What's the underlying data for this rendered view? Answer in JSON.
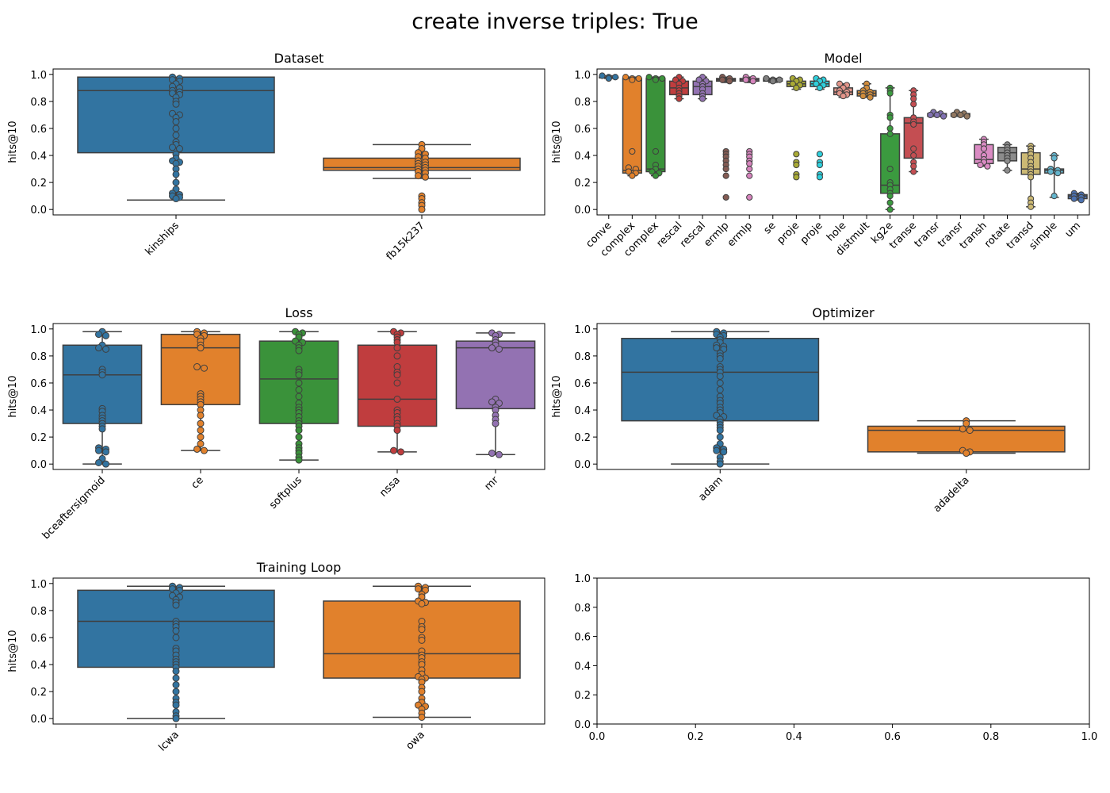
{
  "figure": {
    "title": "create inverse triples: True"
  },
  "chart_data": [
    {
      "type": "box",
      "title": "Dataset",
      "xlabel": "",
      "ylabel": "hits@10",
      "ylim": [
        -0.04,
        1.04
      ],
      "yticks": [
        "0.0",
        "0.2",
        "0.4",
        "0.6",
        "0.8",
        "1.0"
      ],
      "categories": [
        "kinships",
        "fb15k237"
      ],
      "colors": [
        "#3274a1",
        "#e1812c"
      ],
      "boxes": [
        {
          "q1": 0.42,
          "median": 0.88,
          "q3": 0.98,
          "whisker_low": 0.07,
          "whisker_high": 0.98
        },
        {
          "q1": 0.29,
          "median": 0.31,
          "q3": 0.38,
          "whisker_low": 0.23,
          "whisker_high": 0.48
        }
      ],
      "points": [
        [
          0.98,
          0.97,
          0.96,
          0.95,
          0.93,
          0.91,
          0.9,
          0.88,
          0.87,
          0.86,
          0.85,
          0.83,
          0.8,
          0.78,
          0.71,
          0.7,
          0.68,
          0.65,
          0.6,
          0.55,
          0.5,
          0.48,
          0.46,
          0.45,
          0.41,
          0.38,
          0.36,
          0.35,
          0.34,
          0.3,
          0.26,
          0.2,
          0.15,
          0.12,
          0.11,
          0.1,
          0.09,
          0.08
        ],
        [
          0.48,
          0.45,
          0.42,
          0.41,
          0.39,
          0.38,
          0.36,
          0.35,
          0.34,
          0.33,
          0.32,
          0.31,
          0.3,
          0.29,
          0.28,
          0.27,
          0.25,
          0.24,
          0.1,
          0.08,
          0.05,
          0.03,
          0.0
        ]
      ]
    },
    {
      "type": "box",
      "title": "Model",
      "xlabel": "",
      "ylabel": "hits@10",
      "ylim": [
        -0.04,
        1.04
      ],
      "yticks": [
        "0.0",
        "0.2",
        "0.4",
        "0.6",
        "0.8",
        "1.0"
      ],
      "categories": [
        "conve",
        "complex",
        "complex",
        "rescal",
        "rescal",
        "ermlp",
        "ermlp",
        "se",
        "proje",
        "proje",
        "hole",
        "distmult",
        "kg2e",
        "transe",
        "transr",
        "transr",
        "transh",
        "rotate",
        "transd",
        "simple",
        "um"
      ],
      "colors": [
        "#3274a1",
        "#e1812c",
        "#3a923a",
        "#c03d3e",
        "#9372b2",
        "#845b53",
        "#d684bd",
        "#7f7f7f",
        "#a9aa35",
        "#2ed0dd",
        "#e3958a",
        "#d08c3b",
        "#3b9a3f",
        "#c44e52",
        "#8172b2",
        "#937860",
        "#da8bc3",
        "#8c8c8c",
        "#ccb974",
        "#64b5cd",
        "#4c72b0"
      ],
      "boxes": [
        {
          "q1": 0.98,
          "median": 0.98,
          "q3": 0.98,
          "whisker_low": 0.97,
          "whisker_high": 0.99
        },
        {
          "q1": 0.27,
          "median": 0.29,
          "q3": 0.97,
          "whisker_low": 0.25,
          "whisker_high": 0.98
        },
        {
          "q1": 0.28,
          "median": 0.3,
          "q3": 0.97,
          "whisker_low": 0.25,
          "whisker_high": 0.98
        },
        {
          "q1": 0.85,
          "median": 0.9,
          "q3": 0.95,
          "whisker_low": 0.82,
          "whisker_high": 0.98
        },
        {
          "q1": 0.85,
          "median": 0.91,
          "q3": 0.95,
          "whisker_low": 0.82,
          "whisker_high": 0.98
        },
        {
          "q1": 0.95,
          "median": 0.96,
          "q3": 0.97,
          "whisker_low": 0.94,
          "whisker_high": 0.98
        },
        {
          "q1": 0.95,
          "median": 0.96,
          "q3": 0.97,
          "whisker_low": 0.94,
          "whisker_high": 0.98
        },
        {
          "q1": 0.95,
          "median": 0.96,
          "q3": 0.97,
          "whisker_low": 0.94,
          "whisker_high": 0.97
        },
        {
          "q1": 0.91,
          "median": 0.93,
          "q3": 0.95,
          "whisker_low": 0.89,
          "whisker_high": 0.97
        },
        {
          "q1": 0.91,
          "median": 0.93,
          "q3": 0.95,
          "whisker_low": 0.89,
          "whisker_high": 0.97
        },
        {
          "q1": 0.85,
          "median": 0.87,
          "q3": 0.9,
          "whisker_low": 0.83,
          "whisker_high": 0.93
        },
        {
          "q1": 0.84,
          "median": 0.86,
          "q3": 0.88,
          "whisker_low": 0.83,
          "whisker_high": 0.93
        },
        {
          "q1": 0.12,
          "median": 0.18,
          "q3": 0.56,
          "whisker_low": 0.0,
          "whisker_high": 0.9
        },
        {
          "q1": 0.38,
          "median": 0.64,
          "q3": 0.68,
          "whisker_low": 0.28,
          "whisker_high": 0.88
        },
        {
          "q1": 0.69,
          "median": 0.7,
          "q3": 0.71,
          "whisker_low": 0.69,
          "whisker_high": 0.72
        },
        {
          "q1": 0.69,
          "median": 0.7,
          "q3": 0.71,
          "whisker_low": 0.69,
          "whisker_high": 0.72
        },
        {
          "q1": 0.34,
          "median": 0.37,
          "q3": 0.48,
          "whisker_low": 0.32,
          "whisker_high": 0.52
        },
        {
          "q1": 0.36,
          "median": 0.42,
          "q3": 0.46,
          "whisker_low": 0.29,
          "whisker_high": 0.48
        },
        {
          "q1": 0.26,
          "median": 0.3,
          "q3": 0.42,
          "whisker_low": 0.02,
          "whisker_high": 0.47
        },
        {
          "q1": 0.27,
          "median": 0.29,
          "q3": 0.3,
          "whisker_low": 0.09,
          "whisker_high": 0.4
        },
        {
          "q1": 0.08,
          "median": 0.1,
          "q3": 0.11,
          "whisker_low": 0.07,
          "whisker_high": 0.12
        }
      ],
      "points": [
        [
          0.99,
          0.98,
          0.98,
          0.97
        ],
        [
          0.98,
          0.97,
          0.97,
          0.96,
          0.43,
          0.31,
          0.3,
          0.28,
          0.27,
          0.25
        ],
        [
          0.98,
          0.97,
          0.97,
          0.96,
          0.43,
          0.33,
          0.3,
          0.28,
          0.27,
          0.25
        ],
        [
          0.98,
          0.96,
          0.95,
          0.93,
          0.9,
          0.88,
          0.86,
          0.84,
          0.82
        ],
        [
          0.98,
          0.96,
          0.95,
          0.93,
          0.91,
          0.89,
          0.86,
          0.84,
          0.82
        ],
        [
          0.98,
          0.97,
          0.96,
          0.95,
          0.43,
          0.41,
          0.39,
          0.36,
          0.33,
          0.3,
          0.25,
          0.09
        ],
        [
          0.98,
          0.97,
          0.96,
          0.95,
          0.43,
          0.41,
          0.39,
          0.36,
          0.34,
          0.3,
          0.25,
          0.09
        ],
        [
          0.97,
          0.96,
          0.96,
          0.95
        ],
        [
          0.97,
          0.96,
          0.95,
          0.93,
          0.92,
          0.9,
          0.41,
          0.35,
          0.33,
          0.26,
          0.24
        ],
        [
          0.97,
          0.96,
          0.95,
          0.93,
          0.92,
          0.9,
          0.41,
          0.35,
          0.33,
          0.26,
          0.24
        ],
        [
          0.93,
          0.92,
          0.9,
          0.88,
          0.87,
          0.86,
          0.85,
          0.84
        ],
        [
          0.93,
          0.9,
          0.88,
          0.87,
          0.86,
          0.85,
          0.84,
          0.83
        ],
        [
          0.9,
          0.88,
          0.86,
          0.7,
          0.68,
          0.6,
          0.56,
          0.3,
          0.2,
          0.18,
          0.15,
          0.12,
          0.1,
          0.05,
          0.0
        ],
        [
          0.88,
          0.85,
          0.82,
          0.78,
          0.68,
          0.65,
          0.63,
          0.45,
          0.4,
          0.35,
          0.32,
          0.28
        ],
        [
          0.72,
          0.71,
          0.7,
          0.7,
          0.69
        ],
        [
          0.72,
          0.71,
          0.7,
          0.7,
          0.69
        ],
        [
          0.52,
          0.5,
          0.48,
          0.45,
          0.4,
          0.37,
          0.35,
          0.33,
          0.32
        ],
        [
          0.48,
          0.46,
          0.44,
          0.42,
          0.4,
          0.38,
          0.36,
          0.29
        ],
        [
          0.47,
          0.45,
          0.43,
          0.41,
          0.38,
          0.35,
          0.32,
          0.3,
          0.28,
          0.26,
          0.24,
          0.08,
          0.05,
          0.02
        ],
        [
          0.4,
          0.38,
          0.3,
          0.29,
          0.28,
          0.27,
          0.1
        ],
        [
          0.12,
          0.11,
          0.1,
          0.09,
          0.08,
          0.07
        ]
      ]
    },
    {
      "type": "box",
      "title": "Loss",
      "xlabel": "",
      "ylabel": "hits@10",
      "ylim": [
        -0.04,
        1.04
      ],
      "yticks": [
        "0.0",
        "0.2",
        "0.4",
        "0.6",
        "0.8",
        "1.0"
      ],
      "categories": [
        "bceaftersigmoid",
        "ce",
        "softplus",
        "nssa",
        "mr"
      ],
      "colors": [
        "#3274a1",
        "#e1812c",
        "#3a923a",
        "#c03d3e",
        "#9372b2"
      ],
      "boxes": [
        {
          "q1": 0.3,
          "median": 0.66,
          "q3": 0.88,
          "whisker_low": 0.0,
          "whisker_high": 0.98
        },
        {
          "q1": 0.44,
          "median": 0.86,
          "q3": 0.96,
          "whisker_low": 0.1,
          "whisker_high": 0.98
        },
        {
          "q1": 0.3,
          "median": 0.63,
          "q3": 0.91,
          "whisker_low": 0.03,
          "whisker_high": 0.98
        },
        {
          "q1": 0.28,
          "median": 0.48,
          "q3": 0.88,
          "whisker_low": 0.09,
          "whisker_high": 0.98
        },
        {
          "q1": 0.41,
          "median": 0.86,
          "q3": 0.91,
          "whisker_low": 0.07,
          "whisker_high": 0.97
        }
      ],
      "points": [
        [
          0.98,
          0.96,
          0.95,
          0.88,
          0.86,
          0.85,
          0.7,
          0.68,
          0.66,
          0.41,
          0.39,
          0.36,
          0.34,
          0.32,
          0.3,
          0.28,
          0.26,
          0.12,
          0.11,
          0.1,
          0.09,
          0.04,
          0.01,
          0.0
        ],
        [
          0.98,
          0.97,
          0.96,
          0.95,
          0.93,
          0.91,
          0.88,
          0.86,
          0.72,
          0.71,
          0.52,
          0.5,
          0.48,
          0.46,
          0.44,
          0.4,
          0.36,
          0.3,
          0.25,
          0.2,
          0.15,
          0.11,
          0.1
        ],
        [
          0.98,
          0.97,
          0.96,
          0.94,
          0.91,
          0.9,
          0.88,
          0.86,
          0.84,
          0.7,
          0.68,
          0.66,
          0.6,
          0.55,
          0.5,
          0.45,
          0.42,
          0.4,
          0.38,
          0.35,
          0.32,
          0.3,
          0.28,
          0.25,
          0.2,
          0.15,
          0.12,
          0.1,
          0.08,
          0.05,
          0.03
        ],
        [
          0.98,
          0.97,
          0.96,
          0.94,
          0.92,
          0.9,
          0.86,
          0.8,
          0.72,
          0.68,
          0.66,
          0.6,
          0.48,
          0.4,
          0.38,
          0.35,
          0.33,
          0.3,
          0.28,
          0.25,
          0.1,
          0.09
        ],
        [
          0.97,
          0.96,
          0.95,
          0.92,
          0.9,
          0.88,
          0.86,
          0.85,
          0.48,
          0.46,
          0.45,
          0.42,
          0.4,
          0.36,
          0.33,
          0.3,
          0.08,
          0.07
        ]
      ]
    },
    {
      "type": "box",
      "title": "Optimizer",
      "xlabel": "",
      "ylabel": "hits@10",
      "ylim": [
        -0.04,
        1.04
      ],
      "yticks": [
        "0.0",
        "0.2",
        "0.4",
        "0.6",
        "0.8",
        "1.0"
      ],
      "categories": [
        "adam",
        "adadelta"
      ],
      "colors": [
        "#3274a1",
        "#e1812c"
      ],
      "boxes": [
        {
          "q1": 0.32,
          "median": 0.68,
          "q3": 0.93,
          "whisker_low": 0.0,
          "whisker_high": 0.98
        },
        {
          "q1": 0.09,
          "median": 0.25,
          "q3": 0.28,
          "whisker_low": 0.08,
          "whisker_high": 0.32
        }
      ],
      "points": [
        [
          0.98,
          0.97,
          0.96,
          0.95,
          0.94,
          0.92,
          0.9,
          0.88,
          0.87,
          0.86,
          0.85,
          0.82,
          0.8,
          0.78,
          0.72,
          0.7,
          0.68,
          0.65,
          0.6,
          0.55,
          0.5,
          0.47,
          0.45,
          0.42,
          0.4,
          0.38,
          0.36,
          0.35,
          0.33,
          0.31,
          0.29,
          0.27,
          0.25,
          0.2,
          0.15,
          0.12,
          0.11,
          0.1,
          0.09,
          0.05,
          0.02,
          0.0
        ],
        [
          0.32,
          0.3,
          0.26,
          0.25,
          0.1,
          0.09,
          0.08
        ]
      ]
    },
    {
      "type": "box",
      "title": "Training Loop",
      "xlabel": "",
      "ylabel": "hits@10",
      "ylim": [
        -0.04,
        1.04
      ],
      "yticks": [
        "0.0",
        "0.2",
        "0.4",
        "0.6",
        "0.8",
        "1.0"
      ],
      "categories": [
        "lcwa",
        "owa"
      ],
      "colors": [
        "#3274a1",
        "#e1812c"
      ],
      "boxes": [
        {
          "q1": 0.38,
          "median": 0.72,
          "q3": 0.95,
          "whisker_low": 0.0,
          "whisker_high": 0.98
        },
        {
          "q1": 0.3,
          "median": 0.48,
          "q3": 0.87,
          "whisker_low": 0.01,
          "whisker_high": 0.98
        }
      ],
      "points": [
        [
          0.98,
          0.97,
          0.96,
          0.95,
          0.93,
          0.91,
          0.9,
          0.88,
          0.86,
          0.84,
          0.72,
          0.7,
          0.68,
          0.65,
          0.6,
          0.52,
          0.5,
          0.47,
          0.44,
          0.42,
          0.4,
          0.38,
          0.35,
          0.3,
          0.25,
          0.2,
          0.15,
          0.12,
          0.1,
          0.05,
          0.02,
          0.0
        ],
        [
          0.98,
          0.97,
          0.96,
          0.95,
          0.92,
          0.9,
          0.87,
          0.86,
          0.85,
          0.72,
          0.68,
          0.66,
          0.6,
          0.58,
          0.5,
          0.47,
          0.45,
          0.42,
          0.4,
          0.36,
          0.33,
          0.31,
          0.3,
          0.29,
          0.27,
          0.23,
          0.2,
          0.15,
          0.12,
          0.1,
          0.09,
          0.07,
          0.04,
          0.01
        ]
      ]
    },
    {
      "type": "empty",
      "title": "",
      "xlim": [
        0.0,
        1.0
      ],
      "ylim": [
        0.0,
        1.0
      ],
      "xticks": [
        "0.0",
        "0.2",
        "0.4",
        "0.6",
        "0.8",
        "1.0"
      ],
      "yticks": [
        "0.0",
        "0.2",
        "0.4",
        "0.6",
        "0.8",
        "1.0"
      ]
    }
  ]
}
